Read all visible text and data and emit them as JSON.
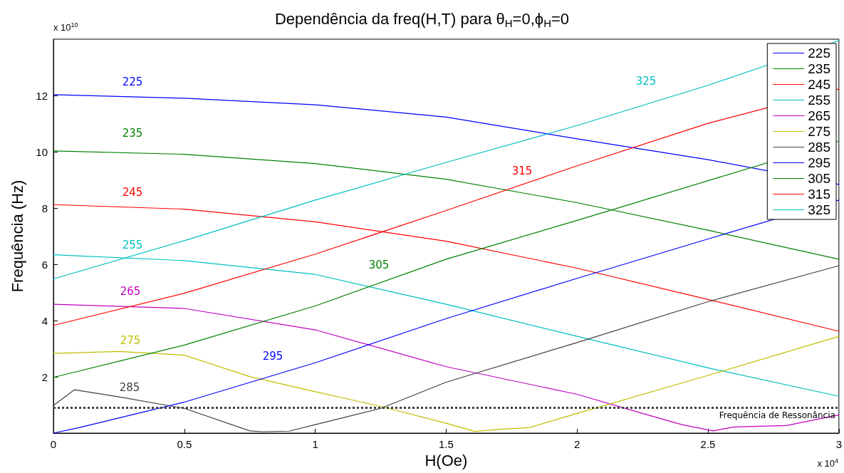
{
  "chart_data": {
    "type": "line",
    "title": "Dependência da freq(H,T) para θ$_{H}$=0,ϕ$_{H}$=0",
    "xlabel": "H(Oe)",
    "ylabel": "Frequência (Hz)",
    "xlim": [
      0,
      3
    ],
    "xticks": [
      0,
      0.5,
      1,
      1.5,
      2,
      2.5,
      3
    ],
    "ylim": [
      0,
      14
    ],
    "yticks": [
      2,
      4,
      6,
      8,
      10,
      12
    ],
    "grid": false,
    "legend": "top right",
    "marker": "none",
    "line_style": "solid",
    "series": [
      {
        "name": "225",
        "color": "#0000ff",
        "x": [
          0,
          0.5,
          1,
          1.5,
          2,
          2.5,
          3
        ],
        "values": [
          12.03,
          11.9,
          11.67,
          11.23,
          10.46,
          9.72,
          8.84
        ]
      },
      {
        "name": "235",
        "color": "#008000",
        "x": [
          0,
          0.5,
          1,
          1.5,
          2,
          2.5,
          3
        ],
        "values": [
          10.03,
          9.91,
          9.58,
          9.02,
          8.19,
          7.21,
          6.18
        ]
      },
      {
        "name": "245",
        "color": "#ff0000",
        "x": [
          0,
          0.5,
          1,
          1.5,
          2,
          2.5,
          3
        ],
        "values": [
          8.12,
          7.96,
          7.51,
          6.82,
          5.86,
          4.75,
          3.62
        ]
      },
      {
        "name": "255",
        "color": "#00bfbf",
        "x": [
          0,
          0.5,
          1,
          1.5,
          2,
          2.5,
          3
        ],
        "values": [
          6.34,
          6.13,
          5.64,
          4.58,
          3.44,
          2.32,
          1.31
        ]
      },
      {
        "name": "265",
        "color": "#bf00bf",
        "x": [
          0,
          0.5,
          1,
          1.5,
          2,
          2.25,
          2.4,
          2.52,
          2.6,
          2.8,
          3
        ],
        "values": [
          4.58,
          4.43,
          3.67,
          2.36,
          1.38,
          0.7,
          0.3,
          0.08,
          0.22,
          0.27,
          0.65
        ]
      },
      {
        "name": "275",
        "color": "#bfbf00",
        "x": [
          0,
          0.25,
          0.5,
          0.75,
          1,
          1.25,
          1.5,
          1.61,
          1.7,
          1.82,
          2,
          2.5,
          3
        ],
        "values": [
          2.83,
          2.9,
          2.77,
          2.01,
          1.47,
          0.95,
          0.35,
          0.06,
          0.13,
          0.2,
          0.7,
          2.05,
          3.44
        ]
      },
      {
        "name": "285",
        "color": "#404040",
        "x": [
          0,
          0.08,
          0.25,
          0.5,
          0.75,
          0.8,
          0.9,
          1,
          1.25,
          1.5,
          2,
          2.5,
          3
        ],
        "values": [
          0.98,
          1.54,
          1.29,
          0.88,
          0.08,
          0.05,
          0.07,
          0.3,
          0.88,
          1.81,
          3.22,
          4.67,
          5.95
        ]
      },
      {
        "name": "295",
        "color": "#0000ff",
        "x": [
          0,
          0.1,
          0.5,
          1,
          1.5,
          2,
          2.5,
          3
        ],
        "values": [
          0,
          0.2,
          1.1,
          2.5,
          4.07,
          5.5,
          6.9,
          8.28
        ]
      },
      {
        "name": "305",
        "color": "#008000",
        "x": [
          0,
          0.5,
          1,
          1.5,
          2,
          2.5,
          3
        ],
        "values": [
          1.98,
          3.13,
          4.52,
          6.18,
          7.56,
          8.97,
          10.38
        ]
      },
      {
        "name": "315",
        "color": "#ff0000",
        "x": [
          0,
          0.5,
          1,
          1.5,
          2,
          2.5,
          3
        ],
        "values": [
          3.83,
          4.97,
          6.36,
          7.91,
          9.5,
          11.01,
          12.23
        ]
      },
      {
        "name": "325",
        "color": "#00bfbf",
        "x": [
          0,
          0.5,
          1,
          1.5,
          2,
          2.5,
          3
        ],
        "values": [
          5.48,
          6.84,
          8.28,
          9.62,
          10.93,
          12.36,
          13.95
        ]
      }
    ],
    "ref_lines": [
      {
        "axis": "y",
        "value": 0.9,
        "label": "Frequência de Ressonância",
        "line_style": "dotted",
        "color": "#404040"
      }
    ],
    "annotations": [
      "225",
      "235",
      "245",
      "255",
      "265",
      "275",
      "285",
      "295",
      "305",
      "315",
      "325",
      "x 10$^{10}$",
      "x 10$^{4}$"
    ]
  }
}
